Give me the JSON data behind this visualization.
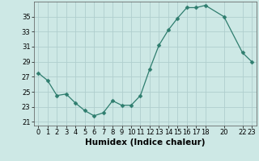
{
  "x": [
    0,
    1,
    2,
    3,
    4,
    5,
    6,
    7,
    8,
    9,
    10,
    11,
    12,
    13,
    14,
    15,
    16,
    17,
    18,
    20,
    22,
    23
  ],
  "y": [
    27.5,
    26.5,
    24.5,
    24.7,
    23.5,
    22.5,
    21.8,
    22.2,
    23.8,
    23.2,
    23.2,
    24.5,
    28.0,
    31.2,
    33.2,
    34.8,
    36.2,
    36.2,
    36.5,
    35.0,
    30.2,
    29.0
  ],
  "line_color": "#2e7d6e",
  "marker": "D",
  "marker_size": 2.5,
  "bg_color": "#cde8e5",
  "grid_color": "#b0cece",
  "xlabel": "Humidex (Indice chaleur)",
  "xlim": [
    -0.5,
    23.5
  ],
  "ylim": [
    20.5,
    37.0
  ],
  "yticks": [
    21,
    23,
    25,
    27,
    29,
    31,
    33,
    35
  ],
  "xticks": [
    0,
    1,
    2,
    3,
    4,
    5,
    6,
    7,
    8,
    9,
    10,
    11,
    12,
    13,
    14,
    15,
    16,
    17,
    18,
    20,
    22,
    23
  ],
  "xtick_labels": [
    "0",
    "1",
    "2",
    "3",
    "4",
    "5",
    "6",
    "7",
    "8",
    "9",
    "10",
    "11",
    "12",
    "13",
    "14",
    "15",
    "16",
    "17",
    "18",
    "20",
    "22",
    "23"
  ],
  "label_fontsize": 7.5,
  "tick_fontsize": 6.0
}
